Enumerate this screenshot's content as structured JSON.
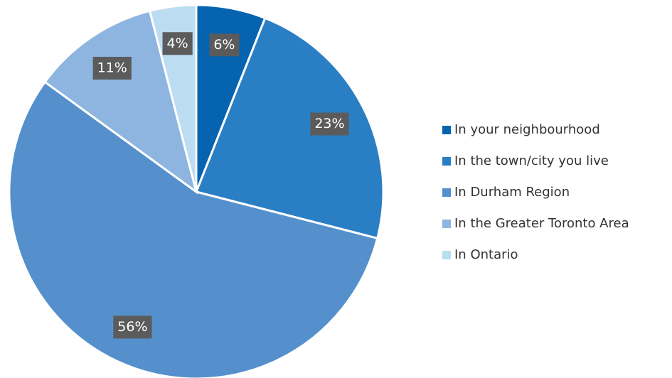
{
  "chart_data": {
    "type": "pie",
    "categories": [
      "In your neighbourhood",
      "In the town/city you live",
      "In Durham Region",
      "In the Greater Toronto Area",
      "In Ontario"
    ],
    "values": [
      6,
      23,
      56,
      11,
      4
    ],
    "value_labels": [
      "6%",
      "23%",
      "56%",
      "11%",
      "4%"
    ],
    "colors": [
      "#0563b0",
      "#2a7fc4",
      "#5590cc",
      "#8db5df",
      "#bcdcf2"
    ],
    "legend": "right"
  }
}
